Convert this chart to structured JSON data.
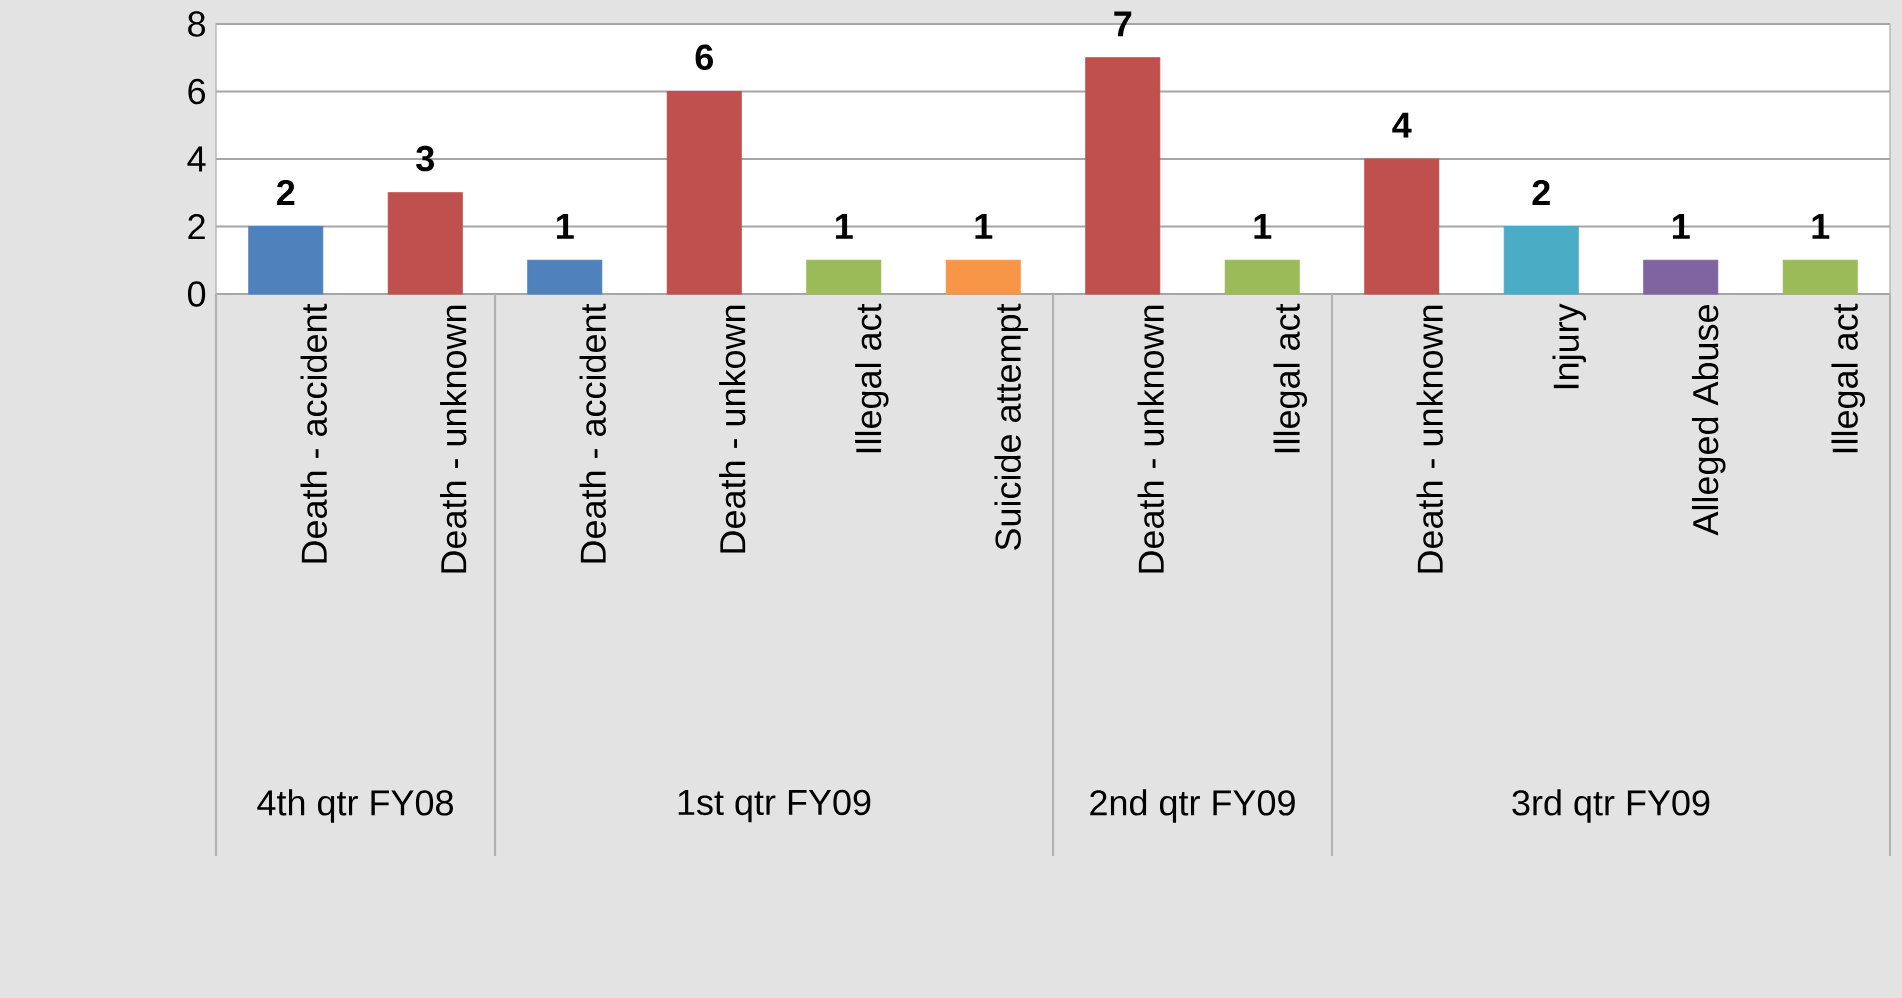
{
  "chart_data": {
    "type": "bar",
    "categories": [
      "Death - accident",
      "Death - unknown",
      "Death - accident",
      "Death - unkown",
      "Illegal act",
      "Suicide attempt",
      "Death - unknown",
      "Illegal act",
      "Death - unknown",
      "Injury",
      "Alleged Abuse",
      "Illegal act"
    ],
    "values": [
      2,
      3,
      1,
      6,
      1,
      1,
      7,
      1,
      4,
      2,
      1,
      1
    ],
    "colors": [
      "#4f81bd",
      "#c0504d",
      "#4f81bd",
      "#c0504d",
      "#9bbb59",
      "#f79646",
      "#c0504d",
      "#9bbb59",
      "#c0504d",
      "#4bacc6",
      "#8064a2",
      "#9bbb59"
    ],
    "annotations": [
      "4th qtr  FY08",
      "1st qtr  FY09",
      "2nd qtr  FY09",
      "3rd qtr  FY09"
    ],
    "ylim": [
      0,
      8
    ],
    "yticks": [
      0,
      2,
      4,
      6,
      8
    ],
    "grid": "y",
    "data_labels": true
  }
}
